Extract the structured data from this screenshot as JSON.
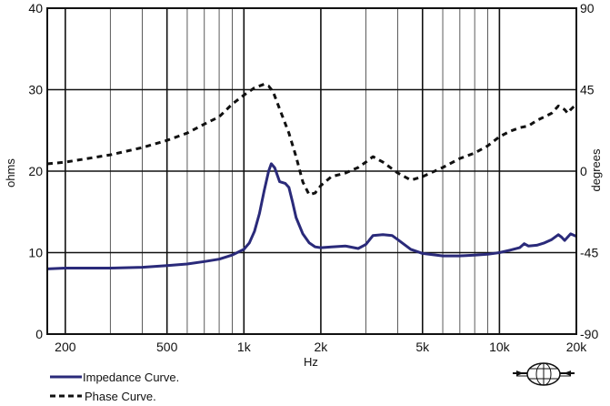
{
  "chart_data": {
    "type": "line",
    "title": "",
    "xlabel": "Hz",
    "ylabel_left": "ohms",
    "ylabel_right": "degrees",
    "x_scale": "log",
    "xlim": [
      170,
      20000
    ],
    "ylim_left": [
      0,
      40
    ],
    "ylim_right": [
      -90,
      90
    ],
    "grid": true,
    "legend_position": "bottom-left",
    "x_ticks": [
      {
        "value": 200,
        "label": "200"
      },
      {
        "value": 500,
        "label": "500"
      },
      {
        "value": 1000,
        "label": "1k"
      },
      {
        "value": 2000,
        "label": "2k"
      },
      {
        "value": 5000,
        "label": "5k"
      },
      {
        "value": 10000,
        "label": "10k"
      },
      {
        "value": 20000,
        "label": "20k"
      }
    ],
    "y_left_ticks": [
      0,
      10,
      20,
      30,
      40
    ],
    "y_right_ticks": [
      -90,
      -45,
      0,
      45,
      90
    ],
    "series": [
      {
        "name": "Impedance Curve.",
        "axis": "left",
        "color": "#2a2a7a",
        "style": "solid",
        "points": [
          [
            170,
            8.0
          ],
          [
            200,
            8.1
          ],
          [
            300,
            8.1
          ],
          [
            400,
            8.2
          ],
          [
            500,
            8.4
          ],
          [
            600,
            8.6
          ],
          [
            700,
            8.9
          ],
          [
            800,
            9.2
          ],
          [
            900,
            9.7
          ],
          [
            1000,
            10.4
          ],
          [
            1050,
            11.2
          ],
          [
            1100,
            12.6
          ],
          [
            1150,
            14.8
          ],
          [
            1200,
            17.6
          ],
          [
            1250,
            20.0
          ],
          [
            1280,
            20.9
          ],
          [
            1320,
            20.4
          ],
          [
            1380,
            18.7
          ],
          [
            1450,
            18.5
          ],
          [
            1500,
            18.0
          ],
          [
            1550,
            16.2
          ],
          [
            1600,
            14.3
          ],
          [
            1700,
            12.3
          ],
          [
            1800,
            11.2
          ],
          [
            1900,
            10.7
          ],
          [
            2000,
            10.6
          ],
          [
            2200,
            10.7
          ],
          [
            2500,
            10.8
          ],
          [
            2800,
            10.5
          ],
          [
            3000,
            11.0
          ],
          [
            3200,
            12.1
          ],
          [
            3500,
            12.2
          ],
          [
            3800,
            12.1
          ],
          [
            4000,
            11.6
          ],
          [
            4500,
            10.4
          ],
          [
            5000,
            9.9
          ],
          [
            6000,
            9.6
          ],
          [
            7000,
            9.6
          ],
          [
            8000,
            9.7
          ],
          [
            9000,
            9.8
          ],
          [
            10000,
            10.0
          ],
          [
            11000,
            10.3
          ],
          [
            12000,
            10.6
          ],
          [
            12500,
            11.1
          ],
          [
            13000,
            10.8
          ],
          [
            14000,
            10.9
          ],
          [
            15000,
            11.2
          ],
          [
            16000,
            11.6
          ],
          [
            17000,
            12.2
          ],
          [
            17500,
            11.9
          ],
          [
            18000,
            11.5
          ],
          [
            19000,
            12.3
          ],
          [
            20000,
            12.0
          ]
        ]
      },
      {
        "name": "Phase Curve.",
        "axis": "right",
        "color": "#111111",
        "style": "dashed",
        "points": [
          [
            170,
            4
          ],
          [
            200,
            5
          ],
          [
            300,
            9
          ],
          [
            400,
            13
          ],
          [
            500,
            17
          ],
          [
            600,
            21
          ],
          [
            700,
            26
          ],
          [
            800,
            30
          ],
          [
            900,
            37
          ],
          [
            1000,
            42
          ],
          [
            1100,
            46
          ],
          [
            1200,
            48
          ],
          [
            1250,
            47
          ],
          [
            1300,
            44
          ],
          [
            1400,
            32
          ],
          [
            1500,
            21
          ],
          [
            1600,
            8
          ],
          [
            1700,
            -6
          ],
          [
            1800,
            -13
          ],
          [
            1900,
            -12
          ],
          [
            2000,
            -8
          ],
          [
            2200,
            -3
          ],
          [
            2500,
            -1
          ],
          [
            2800,
            2
          ],
          [
            3000,
            5
          ],
          [
            3200,
            8
          ],
          [
            3500,
            5
          ],
          [
            4000,
            -1
          ],
          [
            4500,
            -5
          ],
          [
            5000,
            -3
          ],
          [
            6000,
            2
          ],
          [
            7000,
            7
          ],
          [
            8000,
            10
          ],
          [
            9000,
            14
          ],
          [
            10000,
            19
          ],
          [
            11000,
            22
          ],
          [
            12000,
            24
          ],
          [
            13000,
            25
          ],
          [
            14000,
            28
          ],
          [
            15000,
            30
          ],
          [
            16000,
            32
          ],
          [
            17000,
            36
          ],
          [
            18000,
            34
          ],
          [
            18500,
            32
          ],
          [
            19000,
            34
          ],
          [
            20000,
            37
          ]
        ]
      }
    ]
  },
  "branding": {
    "logo_icon": "globe-logo-icon"
  }
}
